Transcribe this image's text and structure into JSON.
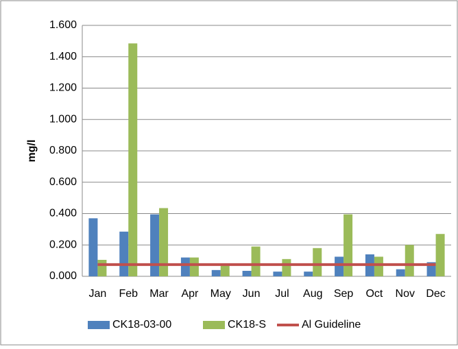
{
  "chart_data": {
    "type": "bar",
    "y_label": "mg/l",
    "categories": [
      "Jan",
      "Feb",
      "Mar",
      "Apr",
      "May",
      "Jun",
      "Jul",
      "Aug",
      "Sep",
      "Oct",
      "Nov",
      "Dec"
    ],
    "series": [
      {
        "name": "CK18-03-00",
        "color": "#4f81bd",
        "values": [
          0.37,
          0.285,
          0.395,
          0.12,
          0.04,
          0.035,
          0.03,
          0.03,
          0.125,
          0.14,
          0.045,
          0.09
        ]
      },
      {
        "name": "CK18-S",
        "color": "#9bbb59",
        "values": [
          0.105,
          1.485,
          0.435,
          0.12,
          0.07,
          0.19,
          0.11,
          0.18,
          0.395,
          0.125,
          0.2,
          0.27
        ]
      },
      {
        "name": "Al Guideline",
        "color": "#c0504d",
        "type": "line",
        "values": [
          0.075,
          0.075,
          0.075,
          0.075,
          0.075,
          0.075,
          0.075,
          0.075,
          0.075,
          0.075,
          0.075,
          0.075
        ]
      }
    ],
    "ylim": [
      0,
      1.6
    ],
    "yticks": [
      {
        "value": 0,
        "label": "0.000"
      },
      {
        "value": 0.2,
        "label": "0.200"
      },
      {
        "value": 0.4,
        "label": "0.400"
      },
      {
        "value": 0.6,
        "label": "0.600"
      },
      {
        "value": 0.8,
        "label": "0.800"
      },
      {
        "value": 1.0,
        "label": "1.000"
      },
      {
        "value": 1.2,
        "label": "1.200"
      },
      {
        "value": 1.4,
        "label": "1.400"
      },
      {
        "value": 1.6,
        "label": "1.600"
      }
    ],
    "grid": true,
    "legend": "bottom"
  }
}
